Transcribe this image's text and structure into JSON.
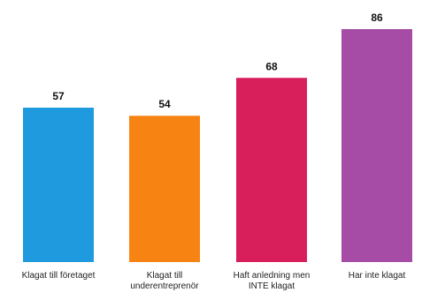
{
  "chart_data": {
    "type": "bar",
    "categories": [
      [
        "Klagat till företaget"
      ],
      [
        "Klagat till",
        "underentreprenör"
      ],
      [
        "Haft anledning men",
        "INTE klagat"
      ],
      [
        "Har inte klagat"
      ]
    ],
    "values": [
      57,
      54,
      68,
      86
    ],
    "colors": [
      "#1f9ade",
      "#f78412",
      "#d81e5b",
      "#a64ca6"
    ],
    "title": "",
    "xlabel": "",
    "ylabel": "",
    "ylim": [
      0,
      86
    ],
    "grid": false,
    "legend": "none"
  }
}
